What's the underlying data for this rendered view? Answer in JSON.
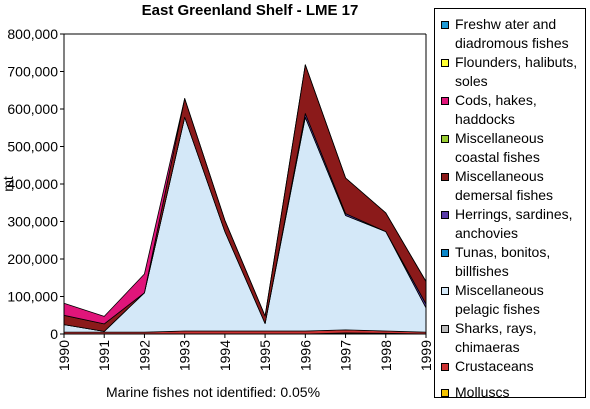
{
  "chart_data": {
    "type": "area",
    "stacked": true,
    "title": "East Greenland Shelf - LME 17",
    "xlabel": "",
    "ylabel": "mt",
    "x": [
      1990,
      1991,
      1992,
      1993,
      1994,
      1995,
      1996,
      1997,
      1998,
      1999
    ],
    "ylim": [
      0,
      800000
    ],
    "yticks": [
      "0",
      "100,000",
      "200,000",
      "300,000",
      "400,000",
      "500,000",
      "600,000",
      "700,000",
      "800,000"
    ],
    "xticks": [
      "1990",
      "1991",
      "1992",
      "1993",
      "1994",
      "1995",
      "1996",
      "1997",
      "1998",
      "1999"
    ],
    "grid": false,
    "legend_position": "right",
    "series": [
      {
        "name": "Freshw ater and diadromous fishes",
        "color": "#1f9ad6",
        "values": [
          0,
          0,
          0,
          0,
          0,
          0,
          0,
          0,
          0,
          0
        ]
      },
      {
        "name": "Flounders, halibuts, soles",
        "color": "#ffff33",
        "values": [
          0,
          0,
          0,
          0,
          0,
          0,
          0,
          0,
          0,
          0
        ]
      },
      {
        "name": "Cods, hakes, haddocks",
        "color": "#e0157a",
        "values": [
          32000,
          20000,
          50000,
          0,
          0,
          0,
          0,
          0,
          0,
          0
        ]
      },
      {
        "name": "Miscellaneous coastal fishes",
        "color": "#99cc33",
        "values": [
          0,
          0,
          0,
          0,
          0,
          0,
          0,
          0,
          0,
          0
        ]
      },
      {
        "name": "Miscellaneous demersal fishes",
        "color": "#8b1a1a",
        "values": [
          25000,
          20000,
          0,
          50000,
          30000,
          20000,
          130000,
          95000,
          50000,
          60000
        ]
      },
      {
        "name": "Herrings, sardines, anchovies",
        "color": "#5a3ca8",
        "values": [
          0,
          0,
          0,
          0,
          0,
          0,
          10000,
          5000,
          0,
          10000
        ]
      },
      {
        "name": "Tunas, bonitos, billfishes",
        "color": "#0b86c8",
        "values": [
          0,
          0,
          0,
          0,
          0,
          0,
          0,
          0,
          0,
          0
        ]
      },
      {
        "name": "Miscellaneous pelagic fishes",
        "color": "#d4e8f8",
        "values": [
          20000,
          2000,
          105000,
          570000,
          265000,
          20000,
          570000,
          305000,
          265000,
          65000
        ]
      },
      {
        "name": "Sharks, rays, chimaeras",
        "color": "#bbbbbb",
        "values": [
          0,
          0,
          0,
          0,
          0,
          0,
          0,
          0,
          0,
          0
        ]
      },
      {
        "name": "Crustaceans",
        "color": "#cc3333",
        "values": [
          5000,
          5000,
          5000,
          8000,
          8000,
          8000,
          8000,
          8000,
          6000,
          5000
        ]
      },
      {
        "name": "Molluscs",
        "color": "#f2c200",
        "values": [
          0,
          0,
          0,
          0,
          0,
          0,
          0,
          3000,
          2000,
          0
        ]
      }
    ],
    "footnote": "Marine fishes not identified: 0.05%"
  }
}
